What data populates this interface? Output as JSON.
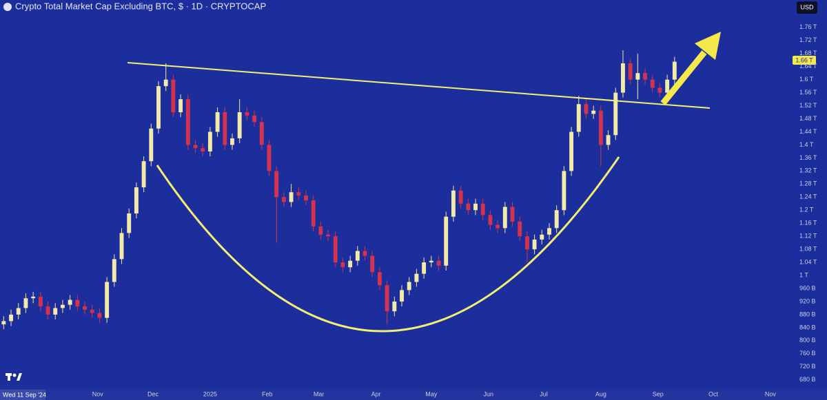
{
  "chart_data": {
    "type": "candlestick",
    "title": "Crypto Total Market Cap Excluding BTC, $ · 1D · CRYPTOCAP",
    "currency": "USD",
    "last_price_label": "1.66 T",
    "crosshair_label": "Wed 11 Sep '24",
    "up_color": "#f3e9a8",
    "down_color": "#d2344f",
    "categories": [
      null,
      null,
      null,
      null,
      null,
      null,
      null,
      null,
      null,
      null,
      null,
      null,
      null,
      null,
      null,
      null,
      null,
      null,
      null,
      null,
      null,
      null,
      null,
      null,
      null,
      null,
      null,
      null,
      null,
      null,
      null,
      null,
      null,
      null,
      null,
      null,
      null,
      null,
      null,
      null,
      null,
      null,
      null,
      null,
      null,
      null,
      null,
      null,
      null,
      null,
      null,
      null,
      null,
      null,
      null,
      null,
      null,
      null,
      null,
      null,
      null,
      null,
      null,
      null,
      null,
      null,
      null,
      null,
      null,
      null,
      null,
      null,
      null,
      null,
      null,
      null,
      null,
      null,
      null,
      null,
      null,
      null,
      null,
      null,
      null,
      null,
      null,
      null,
      null,
      null,
      null,
      null
    ],
    "open": [
      850,
      860,
      880,
      900,
      930,
      935,
      905,
      880,
      900,
      910,
      925,
      905,
      895,
      885,
      870,
      980,
      1050,
      1130,
      1190,
      1270,
      1350,
      1450,
      1580,
      1600,
      1500,
      1540,
      1400,
      1390,
      1380,
      1440,
      1500,
      1400,
      1420,
      1500,
      1490,
      1470,
      1400,
      1320,
      1240,
      1225,
      1255,
      1245,
      1230,
      1150,
      1125,
      1120,
      1040,
      1025,
      1045,
      1075,
      1060,
      1010,
      970,
      890,
      920,
      955,
      980,
      1005,
      1040,
      1045,
      1030,
      1180,
      1260,
      1220,
      1200,
      1220,
      1185,
      1155,
      1145,
      1210,
      1165,
      1120,
      1080,
      1110,
      1125,
      1145,
      1200,
      1320,
      1440,
      1525,
      1495,
      1505,
      1400,
      1430,
      1560,
      1650,
      1600,
      1620,
      1600,
      1575,
      1560,
      1600
    ],
    "high": [
      875,
      895,
      915,
      945,
      950,
      950,
      920,
      915,
      925,
      940,
      940,
      920,
      910,
      900,
      995,
      1065,
      1145,
      1205,
      1285,
      1365,
      1465,
      1595,
      1650,
      1615,
      1555,
      1555,
      1415,
      1405,
      1455,
      1515,
      1515,
      1435,
      1540,
      1515,
      1505,
      1485,
      1415,
      1335,
      1255,
      1280,
      1270,
      1260,
      1245,
      1165,
      1140,
      1135,
      1055,
      1060,
      1090,
      1090,
      1075,
      1025,
      985,
      935,
      970,
      995,
      1020,
      1055,
      1060,
      1060,
      1195,
      1275,
      1275,
      1235,
      1235,
      1235,
      1200,
      1170,
      1225,
      1225,
      1180,
      1135,
      1125,
      1140,
      1160,
      1215,
      1335,
      1455,
      1550,
      1540,
      1520,
      1520,
      1445,
      1575,
      1690,
      1665,
      1680,
      1635,
      1615,
      1590,
      1615,
      1670
    ],
    "low": [
      835,
      845,
      865,
      885,
      915,
      890,
      865,
      865,
      885,
      895,
      890,
      880,
      870,
      855,
      855,
      965,
      1035,
      1115,
      1175,
      1255,
      1335,
      1435,
      1565,
      1485,
      1485,
      1385,
      1375,
      1365,
      1365,
      1425,
      1385,
      1385,
      1405,
      1475,
      1455,
      1385,
      1305,
      1100,
      1210,
      1210,
      1230,
      1215,
      1135,
      1110,
      1105,
      1025,
      1010,
      1010,
      1030,
      1045,
      995,
      955,
      850,
      875,
      905,
      940,
      965,
      990,
      1025,
      1015,
      1015,
      1165,
      1205,
      1185,
      1185,
      1170,
      1140,
      1130,
      1130,
      1150,
      1105,
      1040,
      1065,
      1095,
      1110,
      1130,
      1185,
      1305,
      1425,
      1480,
      1480,
      1335,
      1385,
      1415,
      1545,
      1585,
      1540,
      1585,
      1560,
      1545,
      1545,
      1585
    ],
    "close": [
      860,
      880,
      900,
      930,
      935,
      905,
      880,
      900,
      910,
      925,
      905,
      895,
      885,
      870,
      980,
      1050,
      1130,
      1190,
      1270,
      1350,
      1450,
      1580,
      1600,
      1500,
      1540,
      1400,
      1390,
      1380,
      1440,
      1500,
      1400,
      1420,
      1500,
      1490,
      1470,
      1400,
      1320,
      1240,
      1225,
      1255,
      1245,
      1230,
      1150,
      1125,
      1120,
      1040,
      1025,
      1045,
      1075,
      1060,
      1010,
      970,
      890,
      920,
      955,
      980,
      1005,
      1040,
      1045,
      1030,
      1180,
      1260,
      1220,
      1200,
      1220,
      1185,
      1155,
      1145,
      1210,
      1165,
      1120,
      1080,
      1110,
      1125,
      1145,
      1200,
      1320,
      1440,
      1525,
      1495,
      1505,
      1400,
      1430,
      1560,
      1650,
      1600,
      1620,
      1600,
      1575,
      1560,
      1600,
      1655
    ],
    "xlim": [
      -0.5,
      107
    ],
    "xticks": [
      {
        "value": 12.75,
        "label": "Nov"
      },
      {
        "value": 20.25,
        "label": "Dec"
      },
      {
        "value": 28,
        "label": "2025"
      },
      {
        "value": 35.75,
        "label": "Feb"
      },
      {
        "value": 42.75,
        "label": "Mar"
      },
      {
        "value": 50.5,
        "label": "Apr"
      },
      {
        "value": 58,
        "label": "May"
      },
      {
        "value": 65.75,
        "label": "Jun"
      },
      {
        "value": 73.25,
        "label": "Jul"
      },
      {
        "value": 81,
        "label": "Aug"
      },
      {
        "value": 88.75,
        "label": "Sep"
      },
      {
        "value": 96.25,
        "label": "Oct"
      },
      {
        "value": 104,
        "label": "Nov"
      }
    ],
    "ylim": [
      652,
      1844
    ],
    "yticks": [
      {
        "value": 680,
        "label": "680 B"
      },
      {
        "value": 720,
        "label": "720 B"
      },
      {
        "value": 760,
        "label": "760 B"
      },
      {
        "value": 800,
        "label": "800 B"
      },
      {
        "value": 840,
        "label": "840 B"
      },
      {
        "value": 880,
        "label": "880 B"
      },
      {
        "value": 920,
        "label": "920 B"
      },
      {
        "value": 960,
        "label": "960 B"
      },
      {
        "value": 1000,
        "label": "1 T"
      },
      {
        "value": 1040,
        "label": "1.04 T"
      },
      {
        "value": 1080,
        "label": "1.08 T"
      },
      {
        "value": 1120,
        "label": "1.12 T"
      },
      {
        "value": 1160,
        "label": "1.16 T"
      },
      {
        "value": 1200,
        "label": "1.2 T"
      },
      {
        "value": 1240,
        "label": "1.24 T"
      },
      {
        "value": 1280,
        "label": "1.28 T"
      },
      {
        "value": 1320,
        "label": "1.32 T"
      },
      {
        "value": 1360,
        "label": "1.36 T"
      },
      {
        "value": 1400,
        "label": "1.4 T"
      },
      {
        "value": 1440,
        "label": "1.44 T"
      },
      {
        "value": 1480,
        "label": "1.48 T"
      },
      {
        "value": 1520,
        "label": "1.52 T"
      },
      {
        "value": 1560,
        "label": "1.56 T"
      },
      {
        "value": 1600,
        "label": "1.6 T"
      },
      {
        "value": 1640,
        "label": "1.64 T"
      },
      {
        "value": 1680,
        "label": "1.68 T"
      },
      {
        "value": 1720,
        "label": "1.72 T"
      },
      {
        "value": 1760,
        "label": "1.76 T"
      }
    ],
    "grid": false
  }
}
